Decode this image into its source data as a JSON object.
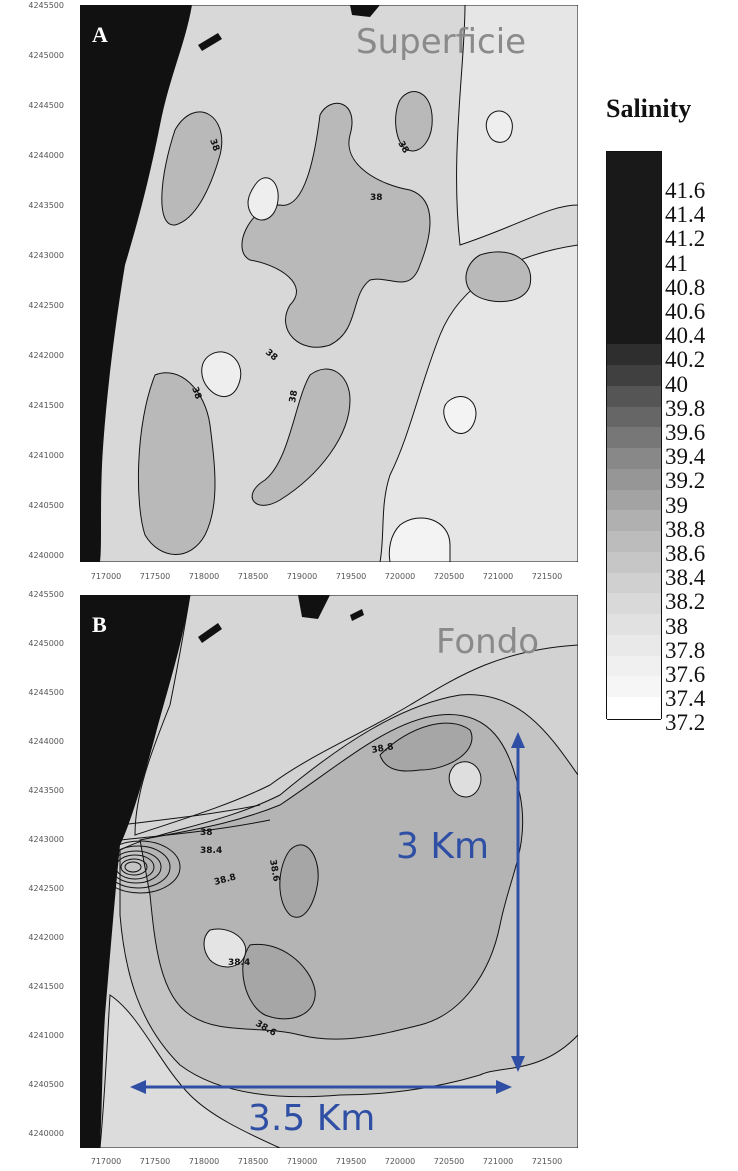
{
  "panels": {
    "a": {
      "letter": "A",
      "title": "Superficie",
      "contour_labels": [
        "38",
        "38",
        "38",
        "38",
        "38",
        "38",
        "38"
      ]
    },
    "b": {
      "letter": "B",
      "title": "Fondo",
      "contour_labels": [
        "38",
        "38.4",
        "38.8",
        "38.6",
        "38.4",
        "38.8",
        "38.6"
      ]
    }
  },
  "y_ticks": [
    "4245500",
    "4245000",
    "4244500",
    "4244000",
    "4243500",
    "4243000",
    "4242500",
    "4242000",
    "4241500",
    "4241000",
    "4240500",
    "4240000"
  ],
  "x_ticks": [
    "717000",
    "717500",
    "718000",
    "718500",
    "719000",
    "719500",
    "720000",
    "720500",
    "721000",
    "721500"
  ],
  "colorbar": {
    "title": "Salinity",
    "labels": [
      "41.6",
      "41.4",
      "41.2",
      "41",
      "40.8",
      "40.6",
      "40.4",
      "40.2",
      "40",
      "39.8",
      "39.6",
      "39.4",
      "39.2",
      "39",
      "38.8",
      "38.6",
      "38.4",
      "38.2",
      "38",
      "37.8",
      "37.6",
      "37.4",
      "37.2"
    ],
    "colors": [
      "#191919",
      "#2e2e2e",
      "#404040",
      "#555555",
      "#666666",
      "#777777",
      "#888888",
      "#969696",
      "#a3a3a3",
      "#b0b0b0",
      "#bcbcbc",
      "#c6c6c6",
      "#d0d0d0",
      "#d9d9d9",
      "#e1e1e1",
      "#e9e9e9",
      "#f0f0f0",
      "#f6f6f6",
      "#ffffff"
    ]
  },
  "annotations": {
    "vertical_distance": "3 Km",
    "horizontal_distance": "3.5 Km",
    "arrow_color": "#2f4fa5"
  }
}
